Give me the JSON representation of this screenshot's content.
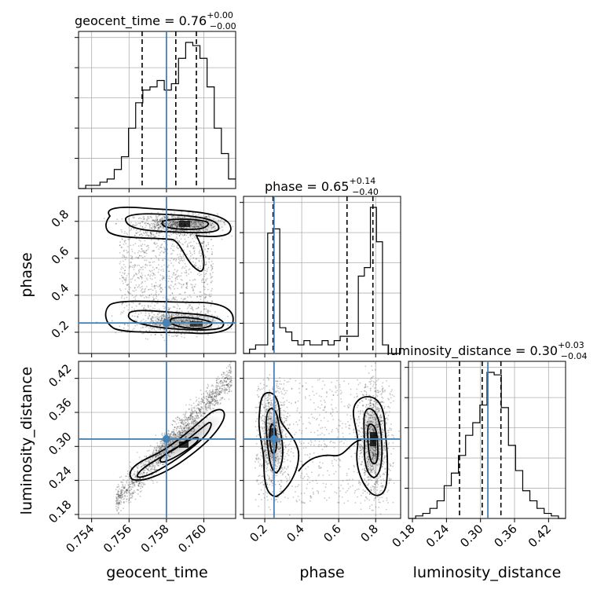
{
  "chart_data": {
    "type": "corner",
    "parameters": [
      "geocent_time",
      "phase",
      "luminosity_distance"
    ],
    "titles": {
      "geocent_time": {
        "name": "geocent_time",
        "median": "0.76",
        "plus": "+0.00",
        "minus": "−0.00"
      },
      "phase": {
        "name": "phase",
        "median": "0.65",
        "plus": "+0.14",
        "minus": "−0.40"
      },
      "luminosity_distance": {
        "name": "luminosity_distance",
        "median": "0.30",
        "plus": "+0.03",
        "minus": "−0.04"
      }
    },
    "ranges": {
      "geocent_time": [
        0.7533,
        0.7617
      ],
      "phase": [
        0.085,
        0.935
      ],
      "luminosity_distance": [
        0.173,
        0.45
      ]
    },
    "ticks": {
      "geocent_time": [
        "0.754",
        "0.756",
        "0.758",
        "0.760"
      ],
      "phase": [
        "0.2",
        "0.4",
        "0.6",
        "0.8"
      ],
      "luminosity_distance": [
        "0.18",
        "0.24",
        "0.30",
        "0.36",
        "0.42"
      ]
    },
    "truths": {
      "geocent_time": 0.758,
      "phase": 0.25,
      "luminosity_distance": 0.313
    },
    "quantiles": {
      "geocent_time": [
        0.7567,
        0.7585,
        0.7596
      ],
      "phase": [
        0.245,
        0.645,
        0.785
      ],
      "luminosity_distance": [
        0.263,
        0.303,
        0.336
      ]
    },
    "histograms": {
      "geocent_time": {
        "edges_start": 0.7533,
        "edges_end": 0.7617,
        "counts": [
          0,
          1,
          1,
          2,
          3,
          6,
          10,
          19,
          27,
          31,
          32,
          34,
          31,
          33,
          41,
          46,
          45,
          41,
          32,
          19,
          11,
          3
        ]
      },
      "phase": {
        "edges_start": 0.085,
        "edges_end": 0.935,
        "counts": [
          0,
          1,
          2,
          2,
          28,
          29,
          6,
          5,
          3,
          2,
          3,
          2,
          2,
          3,
          2,
          3,
          4,
          4,
          4,
          18,
          20,
          34,
          26,
          2,
          0,
          0
        ]
      },
      "luminosity_distance": {
        "edges_start": 0.173,
        "edges_end": 0.45,
        "counts": [
          0,
          1,
          2,
          4,
          7,
          13,
          18,
          25,
          33,
          38,
          45,
          58,
          57,
          44,
          29,
          19,
          11,
          7,
          4,
          2,
          1,
          0
        ]
      }
    },
    "xlabels": [
      "geocent_time",
      "phase",
      "luminosity_distance"
    ],
    "ylabels": [
      "phase",
      "luminosity_distance"
    ],
    "grid": true
  }
}
